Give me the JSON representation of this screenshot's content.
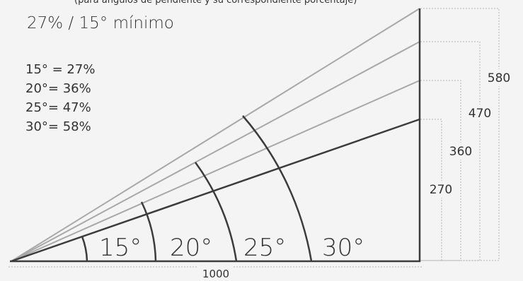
{
  "top_cut_text": "(para ángulos de pendiente y su correspondiente porcentaje)",
  "title": "27% / 15° mínimo",
  "legend": [
    "15° = 27%",
    "20°= 36%",
    "25°= 47%",
    "30°= 58%"
  ],
  "angle_labels": [
    "15°",
    "20°",
    "25°",
    "30°"
  ],
  "heights": [
    "270",
    "360",
    "470",
    "580"
  ],
  "base_label": "1000",
  "colors": {
    "background": "#f4f4f4",
    "dark_line": "#3c3c3c",
    "light_line": "#a8a8a8",
    "dashed": "#b5b5b5",
    "text": "#333333"
  }
}
